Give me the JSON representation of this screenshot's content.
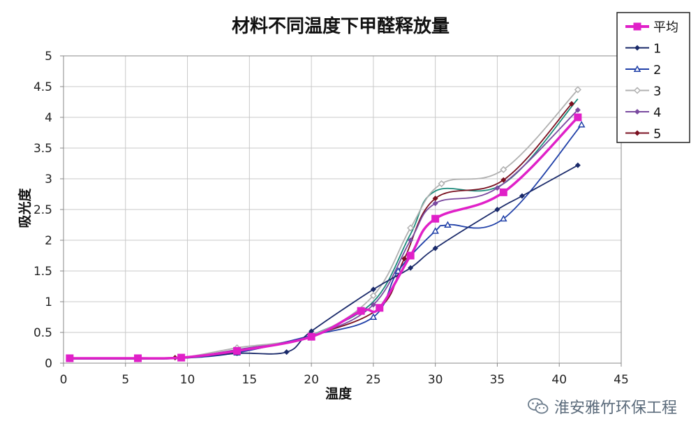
{
  "chart_data": {
    "type": "line",
    "title": "材料不同温度下甲醛释放量",
    "xlabel": "温度",
    "ylabel": "吸光度",
    "xlim": [
      0,
      45
    ],
    "ylim": [
      0,
      5
    ],
    "x_ticks": [
      "0",
      "5",
      "10",
      "15",
      "20",
      "25",
      "30",
      "35",
      "40",
      "45"
    ],
    "y_ticks": [
      "0",
      "0.5",
      "1",
      "1.5",
      "2",
      "2.5",
      "3",
      "3.5",
      "4",
      "4.5",
      "5"
    ],
    "grid": true,
    "legend_position": "top-right",
    "series": [
      {
        "name": "平均",
        "color": "#e020c8",
        "marker": "square",
        "points": [
          [
            0.5,
            0.08
          ],
          [
            6,
            0.08
          ],
          [
            9.5,
            0.09
          ],
          [
            14,
            0.2
          ],
          [
            20,
            0.43
          ],
          [
            24,
            0.85
          ],
          [
            25.5,
            0.9
          ],
          [
            28,
            1.75
          ],
          [
            30,
            2.35
          ],
          [
            35.5,
            2.78
          ],
          [
            41.5,
            4.0
          ]
        ]
      },
      {
        "name": "1",
        "color": "#1a2a6a",
        "marker": "diamond",
        "points": [
          [
            0.5,
            0.07
          ],
          [
            6,
            0.07
          ],
          [
            9.5,
            0.08
          ],
          [
            14,
            0.16
          ],
          [
            18,
            0.18
          ],
          [
            20,
            0.52
          ],
          [
            25,
            1.2
          ],
          [
            28,
            1.55
          ],
          [
            30,
            1.87
          ],
          [
            35,
            2.5
          ],
          [
            37,
            2.72
          ],
          [
            41.5,
            3.22
          ]
        ]
      },
      {
        "name": "2",
        "color": "#2040a8",
        "marker": "triangle",
        "points": [
          [
            0.5,
            0.07
          ],
          [
            6,
            0.07
          ],
          [
            9.5,
            0.08
          ],
          [
            14,
            0.17
          ],
          [
            20,
            0.45
          ],
          [
            25,
            0.75
          ],
          [
            27,
            1.5
          ],
          [
            30,
            2.15
          ],
          [
            31,
            2.25
          ],
          [
            35.5,
            2.35
          ],
          [
            41.8,
            3.88
          ]
        ]
      },
      {
        "name": "3",
        "color": "#b0b0b0",
        "marker": "diamond-open",
        "points": [
          [
            0.5,
            0.07
          ],
          [
            6,
            0.07
          ],
          [
            9.5,
            0.09
          ],
          [
            14,
            0.25
          ],
          [
            20,
            0.45
          ],
          [
            25,
            1.1
          ],
          [
            28,
            2.2
          ],
          [
            30.5,
            2.92
          ],
          [
            35.5,
            3.15
          ],
          [
            41.5,
            4.45
          ]
        ]
      },
      {
        "name": "4",
        "color": "#7a4aa0",
        "marker": "diamond",
        "points": [
          [
            0.5,
            0.07
          ],
          [
            6,
            0.07
          ],
          [
            9.5,
            0.09
          ],
          [
            14,
            0.22
          ],
          [
            20,
            0.45
          ],
          [
            25,
            0.95
          ],
          [
            28,
            2.0
          ],
          [
            30,
            2.6
          ],
          [
            35,
            2.85
          ],
          [
            41.5,
            4.12
          ]
        ]
      },
      {
        "name": "5",
        "color": "#7a1020",
        "marker": "diamond",
        "points": [
          [
            0.5,
            0.08
          ],
          [
            6,
            0.07
          ],
          [
            9,
            0.09
          ],
          [
            14,
            0.18
          ],
          [
            20,
            0.45
          ],
          [
            25.5,
            0.9
          ],
          [
            27.5,
            1.7
          ],
          [
            30,
            2.68
          ],
          [
            35.5,
            2.98
          ],
          [
            41,
            4.22
          ]
        ]
      },
      {
        "name": "",
        "color": "#1a8a7a",
        "marker": "none",
        "points": [
          [
            20,
            0.45
          ],
          [
            25,
            1.0
          ],
          [
            28,
            2.1
          ],
          [
            30,
            2.8
          ],
          [
            35.5,
            2.92
          ],
          [
            41.5,
            4.3
          ]
        ]
      }
    ]
  },
  "watermark": {
    "text": "淮安雅竹环保工程",
    "icon": "wechat-icon"
  }
}
